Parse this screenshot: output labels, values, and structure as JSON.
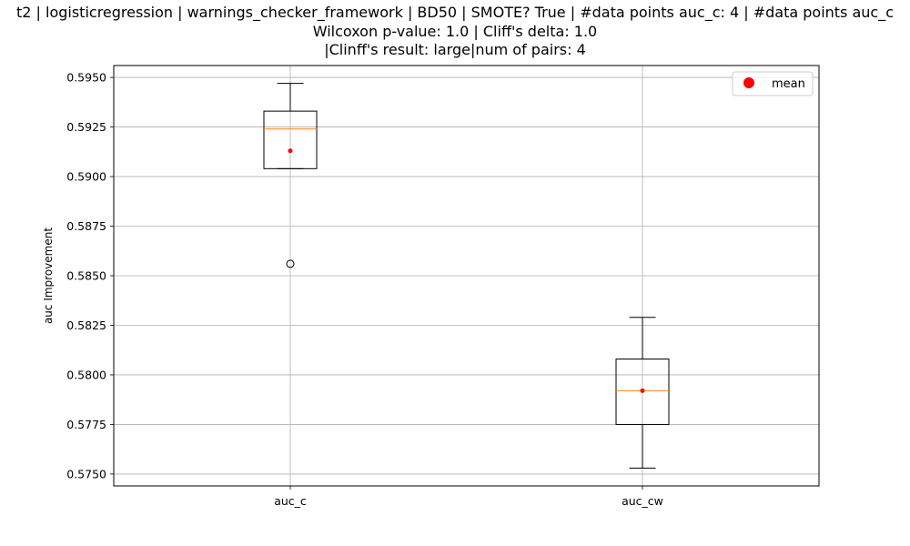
{
  "chart_data": {
    "type": "boxplot",
    "title_lines": [
      "t2 | logisticregression | warnings_checker_framework | BD50 | SMOTE? True | #data points auc_c: 4 | #data points auc_c",
      "Wilcoxon p-value: 1.0 | Cliff's delta: 1.0",
      "|Clinff's result: large|num of pairs: 4"
    ],
    "ylabel": "auc Improvement",
    "xlabel": "",
    "ylim": [
      0.5744,
      0.5956
    ],
    "yticks": [
      0.575,
      0.5775,
      0.58,
      0.5825,
      0.585,
      0.5875,
      0.59,
      0.5925,
      0.595
    ],
    "grid": true,
    "legend": {
      "position": "upper right",
      "entries": [
        {
          "label": "mean",
          "marker": "circle",
          "color": "#ff0000"
        }
      ]
    },
    "categories": [
      "auc_c",
      "auc_cw"
    ],
    "boxes": [
      {
        "name": "auc_c",
        "whisker_low": 0.5904,
        "q1": 0.5904,
        "median": 0.5924,
        "q3": 0.5933,
        "whisker_high": 0.5947,
        "mean": 0.5913,
        "outliers": [
          0.5856
        ]
      },
      {
        "name": "auc_cw",
        "whisker_low": 0.5753,
        "q1": 0.5775,
        "median": 0.5792,
        "q3": 0.5808,
        "whisker_high": 0.5829,
        "mean": 0.5792,
        "outliers": []
      }
    ],
    "colors": {
      "box": "#000000",
      "median": "#ff7f0e",
      "mean": "#ff0000",
      "grid": "#b0b0b0"
    }
  }
}
